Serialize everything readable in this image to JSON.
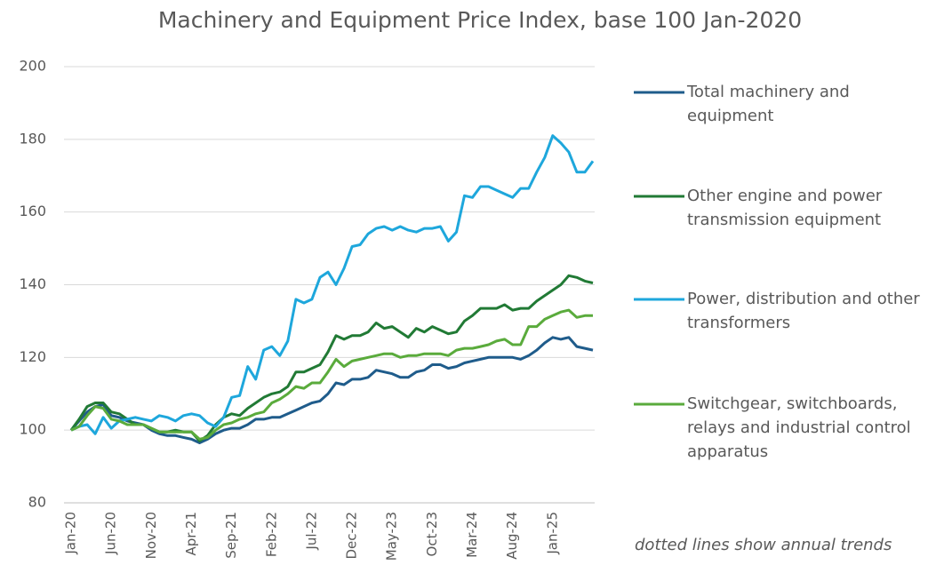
{
  "chart_data": {
    "type": "line",
    "title": "Machinery and Equipment Price Index, base 100 Jan-2020",
    "annotation": "dotted lines show annual trends",
    "categories": [
      "Jan-20",
      null,
      null,
      null,
      null,
      "Jun-20",
      null,
      null,
      null,
      null,
      "Nov-20",
      null,
      null,
      null,
      null,
      "Apr-21",
      null,
      null,
      null,
      null,
      "Sep-21",
      null,
      null,
      null,
      null,
      "Feb-22",
      null,
      null,
      null,
      null,
      "Jul-22",
      null,
      null,
      null,
      null,
      "Dec-22",
      null,
      null,
      null,
      null,
      "May-23",
      null,
      null,
      null,
      null,
      "Oct-23",
      null,
      null,
      null,
      null,
      "Mar-24",
      null,
      null,
      null,
      null,
      "Aug-24",
      null,
      null,
      null,
      null,
      "Jan-25",
      null,
      null,
      null,
      null,
      null
    ],
    "ylim": [
      80,
      200
    ],
    "yticks": [
      80,
      100,
      120,
      140,
      160,
      180,
      200
    ],
    "grid": true,
    "series": [
      {
        "name": "Total machinery and equipment",
        "color": "#1f5c8b",
        "values": [
          100,
          102.5,
          105,
          106.5,
          107,
          104,
          103.5,
          102.5,
          102,
          101.5,
          100,
          99,
          98.5,
          98.5,
          98,
          97.5,
          96.5,
          97.5,
          99,
          100,
          100.5,
          100.5,
          101.5,
          103,
          103,
          103.5,
          103.5,
          104.5,
          105.5,
          106.5,
          107.5,
          108,
          110,
          113,
          112.5,
          114,
          114,
          114.5,
          116.5,
          116,
          115.5,
          114.5,
          114.5,
          116,
          116.5,
          118,
          118,
          117,
          117.5,
          118.5,
          119,
          119.5,
          120,
          120,
          120,
          120,
          119.5,
          120.5,
          122,
          124,
          125.5,
          125,
          125.5,
          123,
          122.5,
          122
        ]
      },
      {
        "name": "Other engine and power transmission equipment",
        "color": "#217a35",
        "values": [
          100,
          103,
          106.5,
          107.5,
          107.5,
          105,
          104.5,
          103,
          101.5,
          101.5,
          100.5,
          99.5,
          99.5,
          100,
          99.5,
          99.5,
          97,
          98.5,
          101.5,
          103.5,
          104.5,
          104,
          106,
          107.5,
          109,
          110,
          110.5,
          112,
          116,
          116,
          117,
          118,
          121.5,
          126,
          125,
          126,
          126,
          127,
          129.5,
          128,
          128.5,
          127,
          125.5,
          128,
          127,
          128.5,
          127.5,
          126.5,
          127,
          130,
          131.5,
          133.5,
          133.5,
          133.5,
          134.5,
          133,
          133.5,
          133.5,
          135.5,
          137,
          138.5,
          140,
          142.5,
          142,
          141,
          140.5
        ]
      },
      {
        "name": "Power, distribution and other transformers",
        "color": "#1ea7dc",
        "values": [
          100,
          101,
          101.5,
          99,
          103.5,
          100.5,
          102.5,
          103,
          103.5,
          103,
          102.5,
          104,
          103.5,
          102.5,
          104,
          104.5,
          104,
          102,
          101,
          103.5,
          109,
          109.5,
          117.5,
          114,
          122,
          123,
          120.5,
          124.5,
          136,
          135,
          136,
          142,
          143.5,
          140,
          144.5,
          150.5,
          151,
          154,
          155.5,
          156,
          155,
          156,
          155,
          154.5,
          155.5,
          155.5,
          156,
          152,
          154.5,
          164.5,
          164,
          167,
          167,
          166,
          165,
          164,
          166.5,
          166.5,
          171,
          175,
          181,
          179,
          176.5,
          171,
          171,
          174
        ]
      },
      {
        "name": "Switchgear, switchboards, relays and industrial control apparatus",
        "color": "#5aab3c",
        "values": [
          100,
          101,
          104,
          106.5,
          106,
          103,
          102.5,
          101.5,
          101.5,
          101.5,
          100.5,
          99.5,
          99.5,
          99.5,
          99.5,
          99.5,
          97.5,
          98,
          100,
          101.5,
          102,
          103,
          103.5,
          104.5,
          105,
          107.5,
          108.5,
          110,
          112,
          111.5,
          113,
          113,
          116,
          119.5,
          117.5,
          119,
          119.5,
          120,
          120.5,
          121,
          121,
          120,
          120.5,
          120.5,
          121,
          121,
          121,
          120.5,
          122,
          122.5,
          122.5,
          123,
          123.5,
          124.5,
          125,
          123.5,
          123.5,
          128.5,
          128.5,
          130.5,
          131.5,
          132.5,
          133,
          131,
          131.5,
          131.5
        ]
      }
    ]
  }
}
